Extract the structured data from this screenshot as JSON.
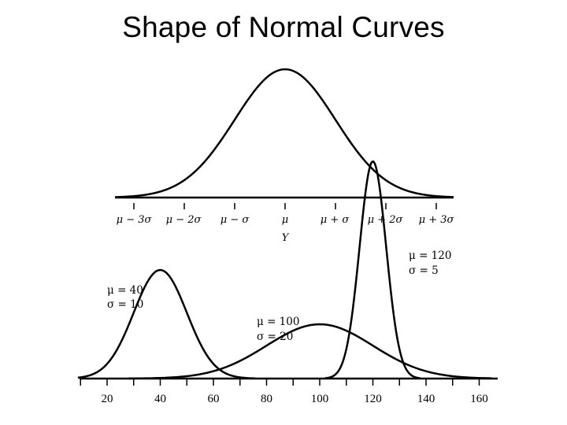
{
  "title": "Shape of Normal Curves",
  "top_diagram": {
    "tick_labels": [
      "μ − 3σ",
      "μ − 2σ",
      "μ − σ",
      "μ",
      "μ + σ",
      "μ + 2σ",
      "μ + 3σ"
    ],
    "axis_label": "Y"
  },
  "chart_data": {
    "type": "line",
    "x_ticks": [
      20,
      40,
      60,
      80,
      100,
      120,
      140,
      160
    ],
    "xlim": [
      10,
      166
    ],
    "series": [
      {
        "mu": 40,
        "sigma": 10,
        "label_mu": "μ = 40",
        "label_sigma": "σ = 10"
      },
      {
        "mu": 100,
        "sigma": 20,
        "label_mu": "μ = 100",
        "label_sigma": "σ = 20"
      },
      {
        "mu": 120,
        "sigma": 5,
        "label_mu": "μ = 120",
        "label_sigma": "σ = 5"
      }
    ]
  }
}
